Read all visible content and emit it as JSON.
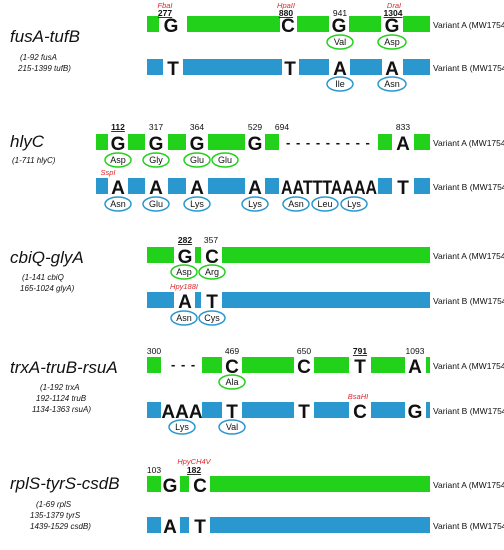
{
  "colors": {
    "variant_a": "#22d11a",
    "variant_b": "#2b97cf",
    "enzyme": "#e0262b"
  },
  "panels": [
    {
      "gene": "fusA-tufB",
      "coords": [
        "(1-92 fusA",
        "215-1399 tufB)"
      ],
      "variant_a": {
        "label": "Variant A (MW175420)",
        "nts": [
          "G",
          "C",
          "G",
          "G"
        ],
        "positions": [
          "277",
          "880",
          "941",
          "1304"
        ],
        "key_positions": [
          true,
          true,
          false,
          true
        ],
        "enzymes": [
          "FbaI",
          "HpaII",
          "",
          "DraI"
        ],
        "aas": [
          "",
          "",
          "Val",
          "Asp"
        ]
      },
      "variant_b": {
        "label": "Variant B (MW175421)",
        "nts": [
          "T",
          "T",
          "A",
          "A"
        ],
        "aas": [
          "",
          "",
          "Ile",
          "Asn"
        ],
        "enzymes": []
      }
    },
    {
      "gene": "hlyC",
      "coords": [
        "(1-711 hlyC)"
      ],
      "variant_a": {
        "label": "Variant A (MW175422)",
        "nts": [
          "G",
          "G",
          "G",
          "G",
          "A"
        ],
        "positions": [
          "112",
          "317",
          "364",
          "529",
          "694",
          "833"
        ],
        "key_positions": [
          true,
          false,
          false,
          false,
          false,
          false
        ],
        "aas": [
          "Asp",
          "Gly",
          "Glu",
          "Glu"
        ],
        "gap": "- - - - - - - - -"
      },
      "variant_b": {
        "label": "Variant B (MW175423)",
        "nts": [
          "A",
          "A",
          "A",
          "A",
          "AATTTAAAA",
          "T"
        ],
        "enzymes": [
          "SspI"
        ],
        "aas": [
          "Asn",
          "Glu",
          "Lys",
          "Lys",
          "Asn",
          "Leu",
          "Lys"
        ]
      }
    },
    {
      "gene": "cbiQ-glyA",
      "coords": [
        "(1-141 cbiQ",
        "165-1024 glyA)"
      ],
      "variant_a": {
        "label": "Variant A (MW175424)",
        "nts": [
          "G",
          "C"
        ],
        "positions": [
          "282",
          "357"
        ],
        "key_positions": [
          true,
          false
        ],
        "aas": [
          "Asp",
          "Arg"
        ]
      },
      "variant_b": {
        "label": "Variant B (MW175425)",
        "nts": [
          "A",
          "T"
        ],
        "enzymes": [
          "Hpy188I"
        ],
        "aas": [
          "Asn",
          "Cys"
        ]
      }
    },
    {
      "gene": "trxA-truB-rsuA",
      "coords": [
        "(1-192 trxA",
        "192-1124 truB",
        "1134-1363 rsuA)"
      ],
      "variant_a": {
        "label": "Variant A (MW175428)",
        "nts": [
          "C",
          "C",
          "T",
          "A"
        ],
        "positions": [
          "300",
          "469",
          "650",
          "791",
          "1093"
        ],
        "key_positions": [
          false,
          false,
          false,
          true,
          false
        ],
        "aas": [
          "Ala"
        ],
        "gap": "- - -"
      },
      "variant_b": {
        "label": "Variant B (MW175429)",
        "nts": [
          "AAA",
          "T",
          "T",
          "C",
          "G"
        ],
        "enzymes": [
          "BsaHI"
        ],
        "aas": [
          "Lys",
          "Val"
        ]
      }
    },
    {
      "gene": "rplS-tyrS-csdB",
      "coords": [
        "(1-69 rplS",
        "135-1379 tyrS",
        "1439-1529 csdB)"
      ],
      "variant_a": {
        "label": "Variant A (MW175426)",
        "nts": [
          "G",
          "C"
        ],
        "positions": [
          "103",
          "182"
        ],
        "key_positions": [
          false,
          true
        ],
        "enzymes": [
          "HpyCH4V"
        ],
        "aas": []
      },
      "variant_b": {
        "label": "Variant B (MW175427)",
        "nts": [
          "A",
          "T"
        ],
        "aas": []
      }
    }
  ]
}
